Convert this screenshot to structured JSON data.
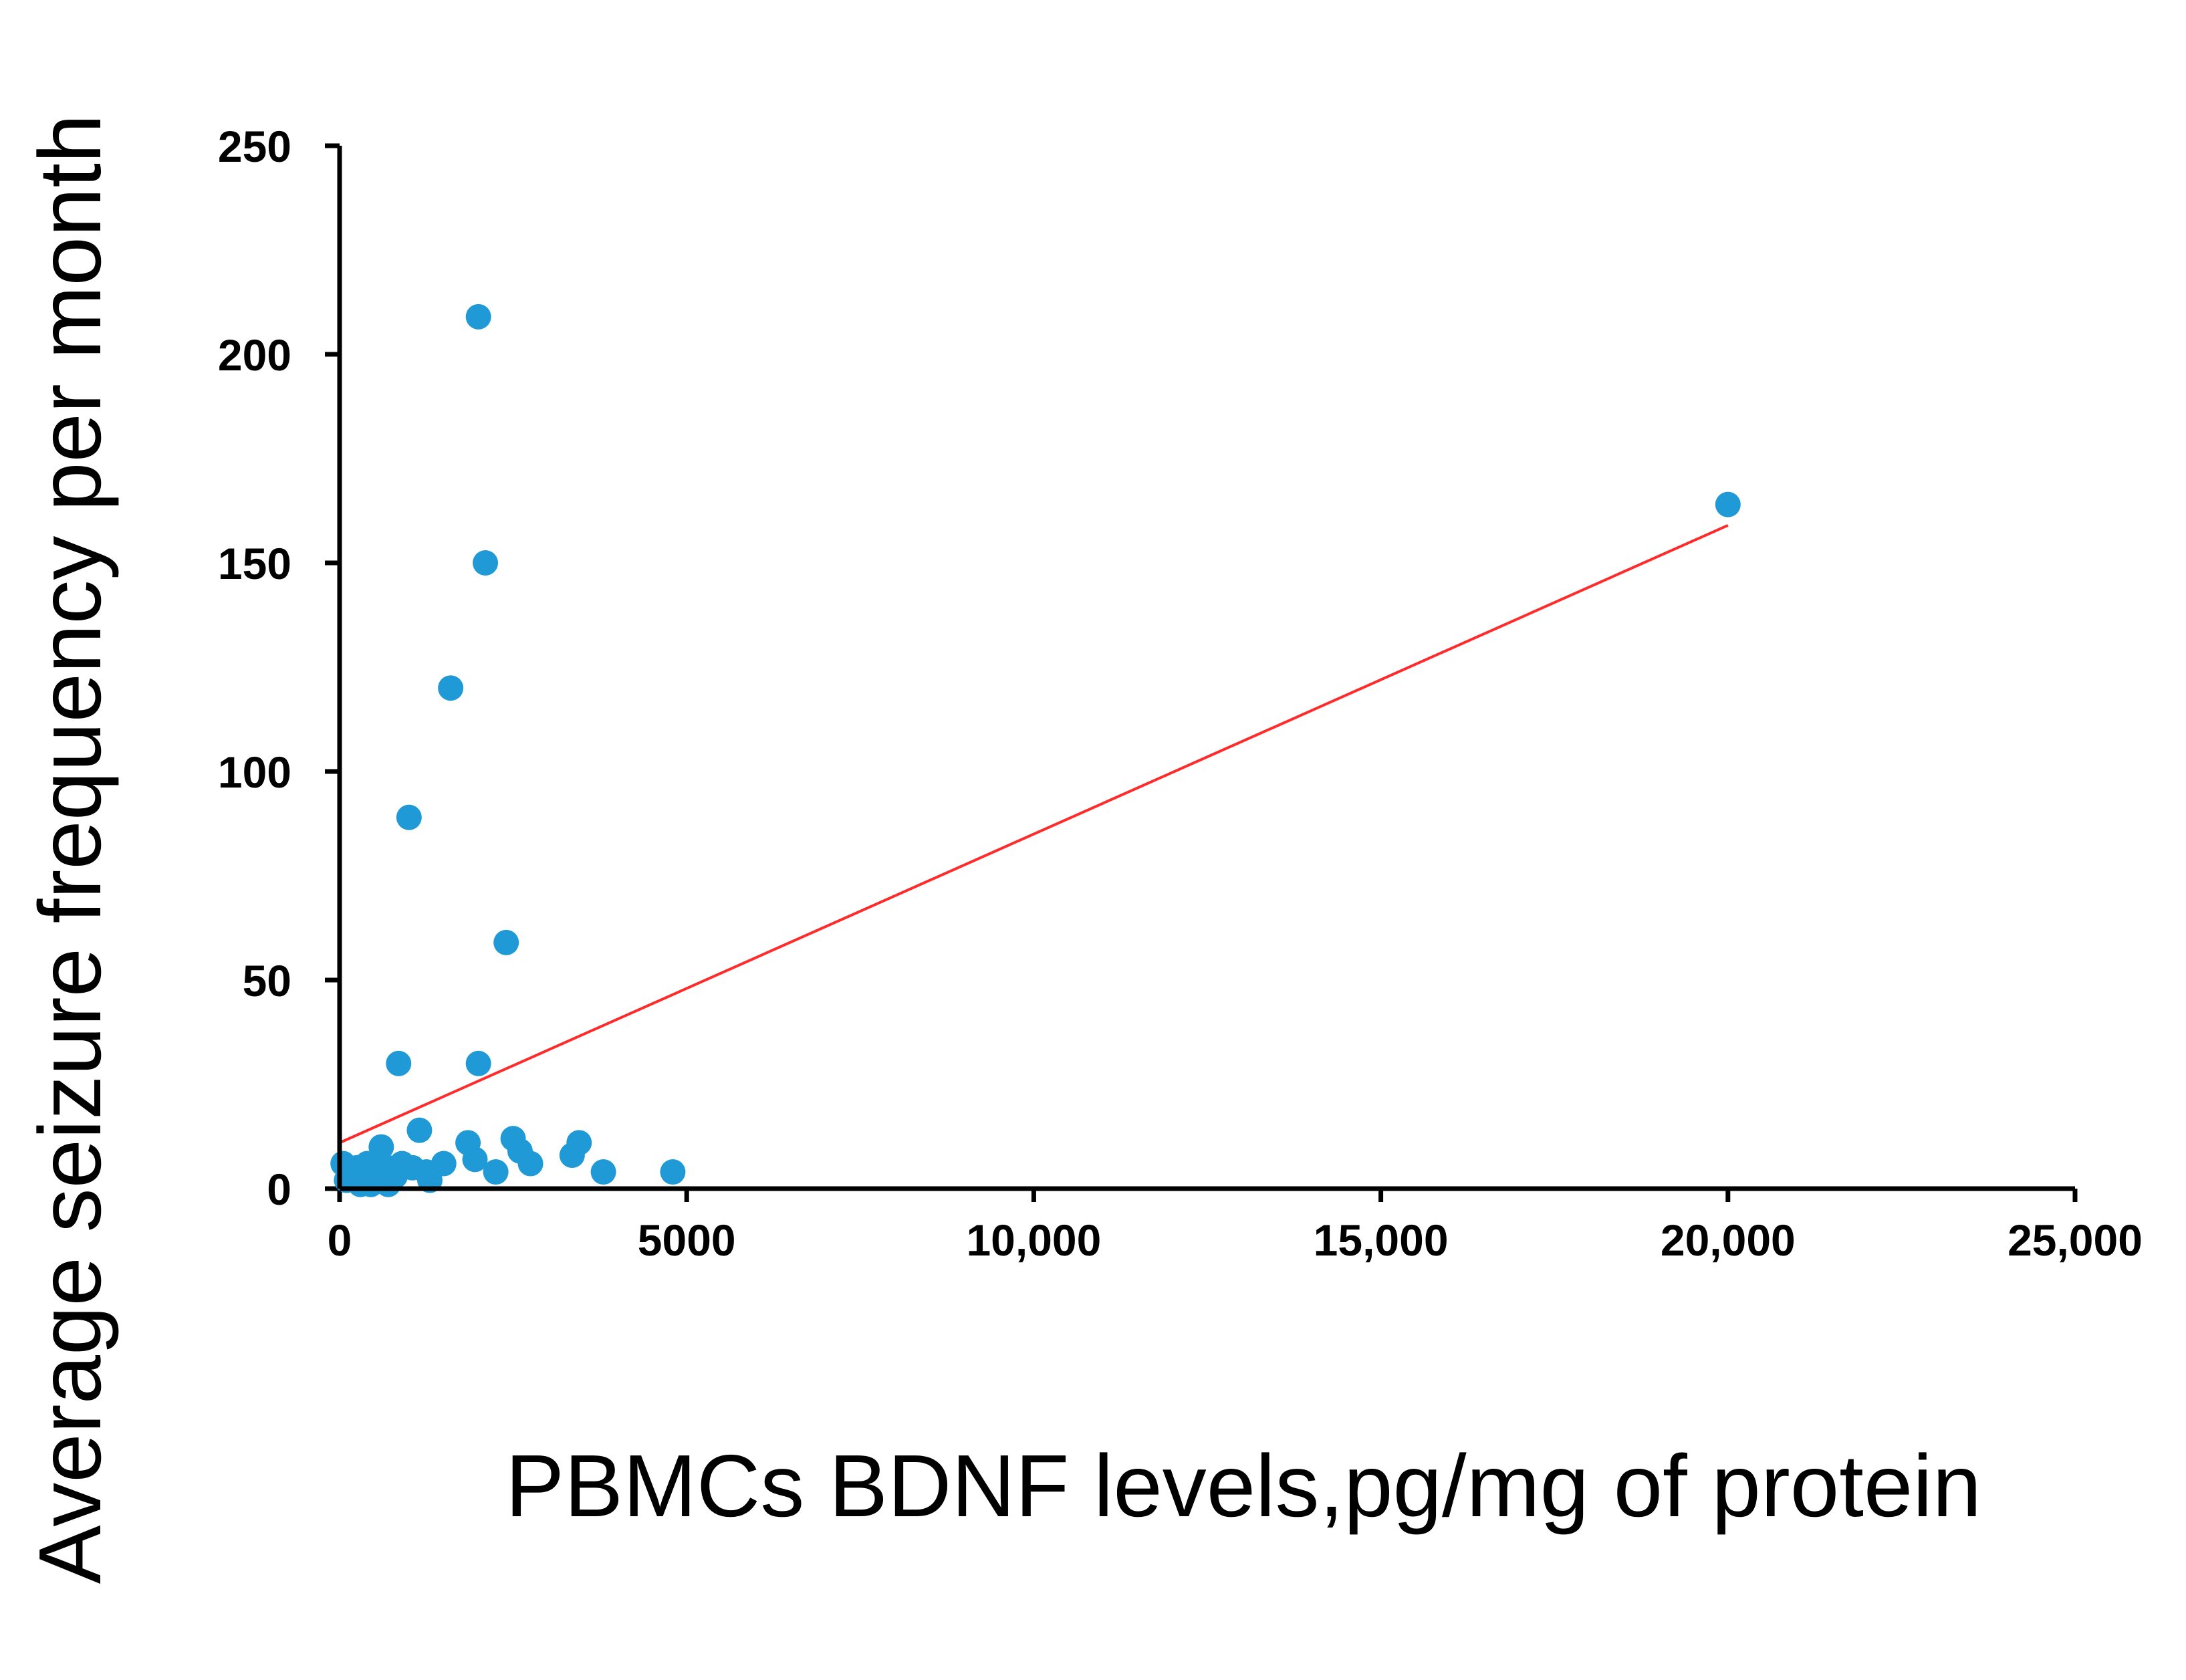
{
  "chart_data": {
    "type": "scatter",
    "title": "",
    "xlabel": "PBMCs BDNF levels,pg/mg of protein",
    "ylabel": "Average seizure frequency per month",
    "xlim": [
      0,
      25000
    ],
    "ylim": [
      0,
      250
    ],
    "xticks": [
      0,
      5000,
      10000,
      15000,
      20000,
      25000
    ],
    "xtick_labels": [
      "0",
      "5000",
      "10,000",
      "15,000",
      "20,000",
      "25,000"
    ],
    "yticks": [
      0,
      50,
      100,
      150,
      200,
      250
    ],
    "ytick_labels": [
      "0",
      "50",
      "100",
      "150",
      "200",
      "250"
    ],
    "grid": false,
    "point_color": "#1f9ad6",
    "trendline_color": "#ff2a2a",
    "points": [
      {
        "x": 2000,
        "y": 209
      },
      {
        "x": 20000,
        "y": 164
      },
      {
        "x": 2100,
        "y": 150
      },
      {
        "x": 1600,
        "y": 120
      },
      {
        "x": 1000,
        "y": 89
      },
      {
        "x": 2400,
        "y": 59
      },
      {
        "x": 850,
        "y": 30
      },
      {
        "x": 2000,
        "y": 30
      },
      {
        "x": 1150,
        "y": 14
      },
      {
        "x": 2500,
        "y": 12
      },
      {
        "x": 3450,
        "y": 11
      },
      {
        "x": 1850,
        "y": 11
      },
      {
        "x": 600,
        "y": 10
      },
      {
        "x": 2600,
        "y": 9
      },
      {
        "x": 3350,
        "y": 8
      },
      {
        "x": 1950,
        "y": 7
      },
      {
        "x": 2750,
        "y": 6
      },
      {
        "x": 50,
        "y": 6
      },
      {
        "x": 400,
        "y": 6
      },
      {
        "x": 900,
        "y": 6
      },
      {
        "x": 1500,
        "y": 6
      },
      {
        "x": 1050,
        "y": 5
      },
      {
        "x": 250,
        "y": 5
      },
      {
        "x": 700,
        "y": 5
      },
      {
        "x": 3800,
        "y": 4
      },
      {
        "x": 4800,
        "y": 4
      },
      {
        "x": 2250,
        "y": 4
      },
      {
        "x": 500,
        "y": 4
      },
      {
        "x": 1250,
        "y": 4
      },
      {
        "x": 150,
        "y": 3
      },
      {
        "x": 350,
        "y": 3
      },
      {
        "x": 800,
        "y": 3
      },
      {
        "x": 600,
        "y": 2
      },
      {
        "x": 1300,
        "y": 2
      },
      {
        "x": 100,
        "y": 2
      },
      {
        "x": 450,
        "y": 1
      },
      {
        "x": 700,
        "y": 1
      },
      {
        "x": 300,
        "y": 1
      }
    ],
    "trendline": {
      "x": [
        0,
        20000
      ],
      "y": [
        11,
        159
      ]
    }
  }
}
